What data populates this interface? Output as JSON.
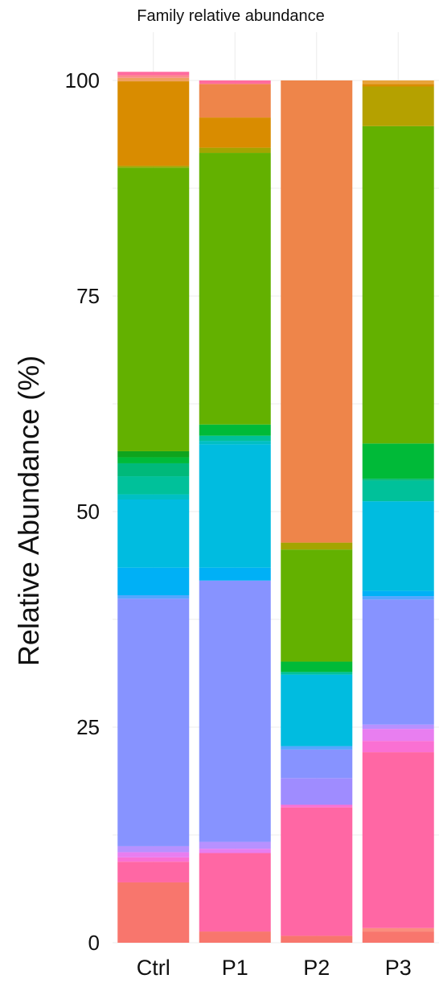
{
  "chart_data": {
    "type": "bar",
    "stacked": true,
    "title": "Family relative abundance",
    "xlabel": "",
    "ylabel": "Relative Abundance (%)",
    "ylim": [
      0,
      100
    ],
    "yticks": [
      "0",
      "25",
      "50",
      "75",
      "100"
    ],
    "grid": true,
    "legend": "none",
    "categories": [
      "Ctrl",
      "P1",
      "P2",
      "P3"
    ],
    "segments": [
      {
        "category": "Ctrl",
        "stack": [
          {
            "value": 7.0,
            "color": "#f8766d"
          },
          {
            "value": 2.4,
            "color": "#ff67a4"
          },
          {
            "value": 0.5,
            "color": "#fa70d3"
          },
          {
            "value": 0.6,
            "color": "#e87ef0"
          },
          {
            "value": 0.7,
            "color": "#b791ff"
          },
          {
            "value": 28.7,
            "color": "#8793ff"
          },
          {
            "value": 0.4,
            "color": "#54a6ff"
          },
          {
            "value": 3.2,
            "color": "#00b0f6"
          },
          {
            "value": 7.9,
            "color": "#00bce0"
          },
          {
            "value": 0.6,
            "color": "#00bfc4"
          },
          {
            "value": 2.1,
            "color": "#00c19a"
          },
          {
            "value": 1.5,
            "color": "#00b97a"
          },
          {
            "value": 0.7,
            "color": "#00ba38"
          },
          {
            "value": 0.7,
            "color": "#0fa41d"
          },
          {
            "value": 32.9,
            "color": "#63b100"
          },
          {
            "value": 0.2,
            "color": "#a3a500"
          },
          {
            "value": 9.8,
            "color": "#d98c00"
          },
          {
            "value": 0.4,
            "color": "#f0a060"
          },
          {
            "value": 0.3,
            "color": "#fb8b8b"
          },
          {
            "value": 0.4,
            "color": "#ff6b9e"
          }
        ]
      },
      {
        "category": "P1",
        "stack": [
          {
            "value": 1.3,
            "color": "#f8766d"
          },
          {
            "value": 9.1,
            "color": "#ff67a4"
          },
          {
            "value": 0.5,
            "color": "#e87ef0"
          },
          {
            "value": 0.8,
            "color": "#b791ff"
          },
          {
            "value": 30.3,
            "color": "#8793ff"
          },
          {
            "value": 1.5,
            "color": "#00b0f6"
          },
          {
            "value": 14.3,
            "color": "#00bce0"
          },
          {
            "value": 0.4,
            "color": "#00bfc4"
          },
          {
            "value": 0.6,
            "color": "#00c19a"
          },
          {
            "value": 1.3,
            "color": "#00ba38"
          },
          {
            "value": 31.5,
            "color": "#63b100"
          },
          {
            "value": 0.6,
            "color": "#a3a500"
          },
          {
            "value": 3.5,
            "color": "#d98c00"
          },
          {
            "value": 3.9,
            "color": "#ee854a"
          },
          {
            "value": 0.4,
            "color": "#ff6b9e"
          }
        ]
      },
      {
        "category": "P2",
        "stack": [
          {
            "value": 0.8,
            "color": "#f8766d"
          },
          {
            "value": 14.9,
            "color": "#ff67a4"
          },
          {
            "value": 0.3,
            "color": "#fa70d3"
          },
          {
            "value": 3.1,
            "color": "#9f8cff"
          },
          {
            "value": 3.3,
            "color": "#8793ff"
          },
          {
            "value": 0.4,
            "color": "#54a6ff"
          },
          {
            "value": 8.3,
            "color": "#00bce0"
          },
          {
            "value": 0.3,
            "color": "#00c19a"
          },
          {
            "value": 1.2,
            "color": "#00ba38"
          },
          {
            "value": 13.0,
            "color": "#63b100"
          },
          {
            "value": 0.8,
            "color": "#a3a500"
          },
          {
            "value": 53.6,
            "color": "#ee854a"
          }
        ]
      },
      {
        "category": "P3",
        "stack": [
          {
            "value": 1.3,
            "color": "#f8766d"
          },
          {
            "value": 0.4,
            "color": "#fa8e7e"
          },
          {
            "value": 20.4,
            "color": "#ff67a4"
          },
          {
            "value": 1.3,
            "color": "#fa70d3"
          },
          {
            "value": 1.4,
            "color": "#e87ef0"
          },
          {
            "value": 0.5,
            "color": "#b791ff"
          },
          {
            "value": 14.5,
            "color": "#8793ff"
          },
          {
            "value": 0.4,
            "color": "#54a6ff"
          },
          {
            "value": 0.6,
            "color": "#00b0f6"
          },
          {
            "value": 10.4,
            "color": "#00bce0"
          },
          {
            "value": 2.4,
            "color": "#00c19a"
          },
          {
            "value": 0.2,
            "color": "#00b97a"
          },
          {
            "value": 4.1,
            "color": "#00ba38"
          },
          {
            "value": 36.8,
            "color": "#63b100"
          },
          {
            "value": 4.6,
            "color": "#b5a100"
          },
          {
            "value": 0.3,
            "color": "#d98c00"
          },
          {
            "value": 0.4,
            "color": "#e8a33a"
          }
        ]
      }
    ]
  }
}
